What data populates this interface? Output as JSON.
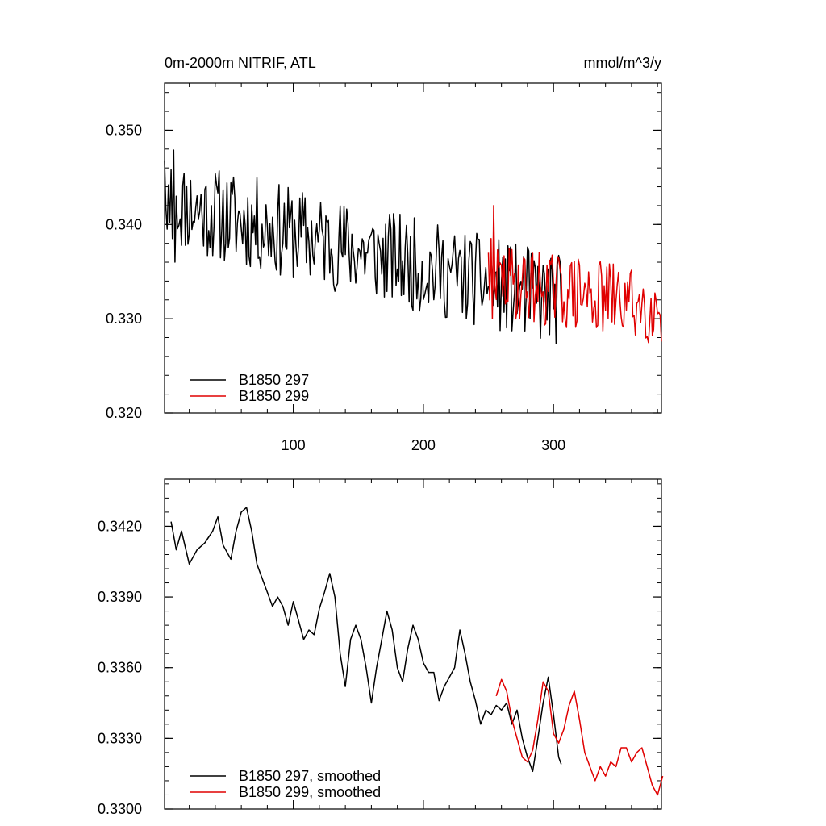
{
  "chart_data": [
    {
      "type": "line",
      "title_left": "0m-2000m NITRIF, ATL",
      "title_right": "mmol/m^3/y",
      "xlim": [
        1,
        383
      ],
      "ylim": [
        0.32,
        0.355
      ],
      "grid": false,
      "legend_placement": "bottom-left",
      "x_ticks": [
        100,
        200,
        300
      ],
      "x_tick_labels": [
        "100",
        "200",
        "300"
      ],
      "y_ticks": [
        0.32,
        0.33,
        0.34,
        0.35
      ],
      "y_tick_labels": [
        "0.320",
        "0.330",
        "0.340",
        "0.350"
      ],
      "series": [
        {
          "name": "B1850 297",
          "color": "#000000",
          "x_start": 1,
          "x_step": 1,
          "trend": {
            "start": 0.3425,
            "end": 0.3318
          },
          "amplitude": 0.005,
          "seed": 11,
          "values": [
            0.3468,
            0.3418,
            0.3395,
            0.3442,
            0.3402,
            0.3458,
            0.3385,
            0.3479,
            0.336,
            0.343
          ]
        },
        {
          "name": "B1850 299",
          "color": "#e00000",
          "x_start": 250,
          "x_step": 1,
          "trend": {
            "start": 0.3342,
            "end": 0.3312
          },
          "amplitude": 0.004,
          "seed": 29,
          "values": [
            0.337,
            0.332,
            0.3385,
            0.33,
            0.342,
            0.3335
          ]
        }
      ]
    },
    {
      "type": "line",
      "xlim": [
        1,
        383
      ],
      "ylim": [
        0.33,
        0.344
      ],
      "grid": false,
      "legend_placement": "bottom-left",
      "x_ticks": [
        100,
        200,
        300
      ],
      "y_ticks": [
        0.33,
        0.333,
        0.336,
        0.339,
        0.342
      ],
      "y_tick_labels": [
        "0.3300",
        "0.3330",
        "0.3360",
        "0.3390",
        "0.3420"
      ],
      "series": [
        {
          "name": "B1850 297, smoothed",
          "color": "#000000",
          "points": [
            [
              6,
              0.3422
            ],
            [
              10,
              0.341
            ],
            [
              14,
              0.3418
            ],
            [
              20,
              0.3404
            ],
            [
              26,
              0.341
            ],
            [
              32,
              0.3413
            ],
            [
              38,
              0.3418
            ],
            [
              42,
              0.3424
            ],
            [
              46,
              0.3412
            ],
            [
              52,
              0.3406
            ],
            [
              56,
              0.3418
            ],
            [
              60,
              0.3426
            ],
            [
              64,
              0.3428
            ],
            [
              68,
              0.3418
            ],
            [
              72,
              0.3404
            ],
            [
              76,
              0.3398
            ],
            [
              80,
              0.3392
            ],
            [
              84,
              0.3386
            ],
            [
              88,
              0.339
            ],
            [
              92,
              0.3386
            ],
            [
              96,
              0.3378
            ],
            [
              100,
              0.3388
            ],
            [
              104,
              0.338
            ],
            [
              108,
              0.3372
            ],
            [
              112,
              0.3376
            ],
            [
              116,
              0.3374
            ],
            [
              120,
              0.3385
            ],
            [
              124,
              0.3392
            ],
            [
              128,
              0.34
            ],
            [
              132,
              0.339
            ],
            [
              136,
              0.3366
            ],
            [
              140,
              0.3352
            ],
            [
              144,
              0.3372
            ],
            [
              148,
              0.3378
            ],
            [
              152,
              0.3372
            ],
            [
              156,
              0.336
            ],
            [
              160,
              0.3345
            ],
            [
              164,
              0.336
            ],
            [
              168,
              0.3372
            ],
            [
              172,
              0.3384
            ],
            [
              176,
              0.3376
            ],
            [
              180,
              0.336
            ],
            [
              184,
              0.3354
            ],
            [
              188,
              0.3368
            ],
            [
              192,
              0.3378
            ],
            [
              196,
              0.3372
            ],
            [
              200,
              0.3362
            ],
            [
              204,
              0.3358
            ],
            [
              208,
              0.3358
            ],
            [
              212,
              0.3346
            ],
            [
              216,
              0.3352
            ],
            [
              220,
              0.3356
            ],
            [
              224,
              0.336
            ],
            [
              228,
              0.3376
            ],
            [
              232,
              0.3366
            ],
            [
              236,
              0.3354
            ],
            [
              240,
              0.3346
            ],
            [
              244,
              0.3336
            ],
            [
              248,
              0.3342
            ],
            [
              252,
              0.334
            ],
            [
              256,
              0.3344
            ],
            [
              260,
              0.3342
            ],
            [
              264,
              0.3345
            ],
            [
              268,
              0.3336
            ],
            [
              272,
              0.3342
            ],
            [
              276,
              0.333
            ],
            [
              280,
              0.3322
            ],
            [
              284,
              0.3316
            ],
            [
              288,
              0.333
            ],
            [
              292,
              0.3345
            ],
            [
              296,
              0.3356
            ],
            [
              300,
              0.334
            ],
            [
              304,
              0.3322
            ],
            [
              306,
              0.3319
            ]
          ]
        },
        {
          "name": "B1850 299, smoothed",
          "color": "#e00000",
          "points": [
            [
              256,
              0.3348
            ],
            [
              260,
              0.3355
            ],
            [
              264,
              0.335
            ],
            [
              268,
              0.3338
            ],
            [
              272,
              0.333
            ],
            [
              276,
              0.3322
            ],
            [
              280,
              0.332
            ],
            [
              284,
              0.3325
            ],
            [
              288,
              0.3338
            ],
            [
              292,
              0.3354
            ],
            [
              296,
              0.335
            ],
            [
              300,
              0.3332
            ],
            [
              304,
              0.3328
            ],
            [
              308,
              0.3334
            ],
            [
              312,
              0.3344
            ],
            [
              316,
              0.335
            ],
            [
              320,
              0.3338
            ],
            [
              324,
              0.3324
            ],
            [
              328,
              0.3318
            ],
            [
              332,
              0.3312
            ],
            [
              336,
              0.3318
            ],
            [
              340,
              0.3314
            ],
            [
              344,
              0.332
            ],
            [
              348,
              0.3318
            ],
            [
              352,
              0.3326
            ],
            [
              356,
              0.3326
            ],
            [
              360,
              0.332
            ],
            [
              364,
              0.3324
            ],
            [
              368,
              0.3326
            ],
            [
              372,
              0.3318
            ],
            [
              376,
              0.331
            ],
            [
              380,
              0.3306
            ],
            [
              384,
              0.3314
            ]
          ]
        }
      ]
    }
  ]
}
